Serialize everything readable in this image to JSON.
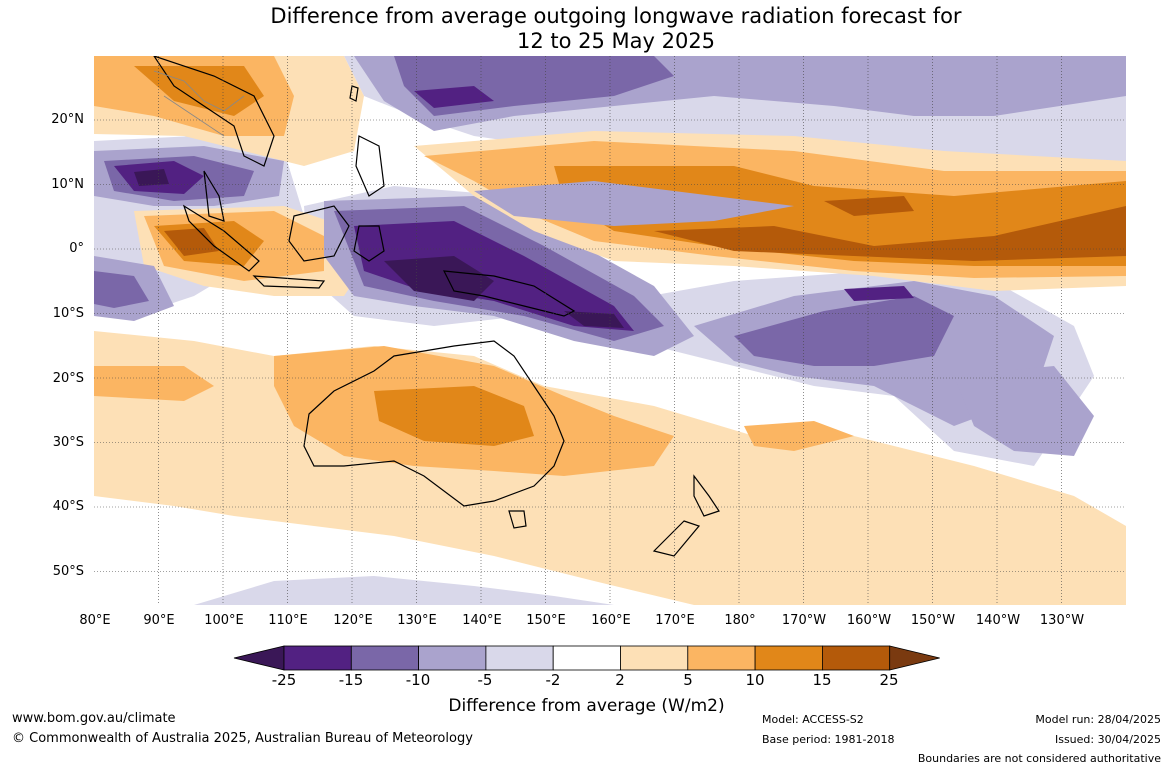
{
  "title": {
    "line1": "Difference from average outgoing longwave radiation forecast for",
    "line2": "12 to 25 May 2025"
  },
  "map": {
    "lat_labels": [
      "20°N",
      "10°N",
      "0°",
      "10°S",
      "20°S",
      "30°S",
      "40°S",
      "50°S"
    ],
    "lon_labels": [
      "80°E",
      "90°E",
      "100°E",
      "110°E",
      "120°E",
      "130°E",
      "140°E",
      "150°E",
      "160°E",
      "170°E",
      "180°",
      "170°W",
      "160°W",
      "150°W",
      "140°W",
      "130°W"
    ],
    "gridlines": true
  },
  "colorbar": {
    "ticks": [
      "-25",
      "-15",
      "-10",
      "-5",
      "-2",
      "2",
      "5",
      "10",
      "15",
      "25"
    ],
    "colors": [
      "#3a1757",
      "#522182",
      "#7a67a8",
      "#aaa3cd",
      "#d9d8ea",
      "#ffffff",
      "#fde0b6",
      "#fbb562",
      "#e18719",
      "#b45a0a",
      "#7a3a10"
    ],
    "label": "Difference from average (W/m2)"
  },
  "footer": {
    "website": "www.bom.gov.au/climate",
    "copyright": "© Commonwealth of Australia 2025, Australian Bureau of Meteorology",
    "model": "Model: ACCESS-S2",
    "base_period": "Base period: 1981-2018",
    "model_run": "Model run: 28/04/2025",
    "issued": "Issued: 30/04/2025",
    "disclaimer": "Boundaries are not considered authoritative"
  }
}
